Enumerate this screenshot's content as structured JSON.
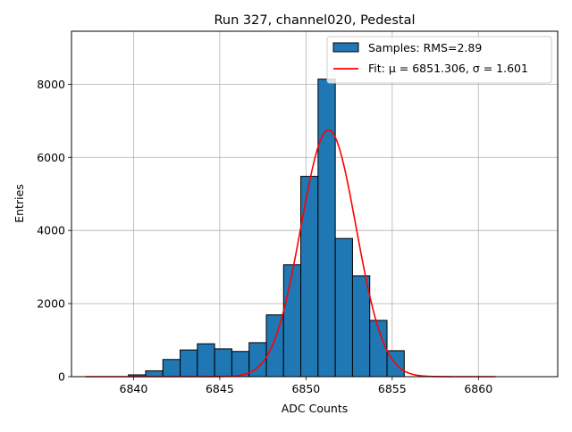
{
  "chart_data": {
    "type": "bar",
    "title": "Run 327, channel020, Pedestal",
    "xlabel": "ADC Counts",
    "ylabel": "Entries",
    "xlim": [
      6836.4,
      6864.6
    ],
    "ylim": [
      0,
      9450
    ],
    "xticks": [
      6840,
      6845,
      6850,
      6855,
      6860
    ],
    "yticks": [
      0,
      2000,
      4000,
      6000,
      8000
    ],
    "grid": true,
    "legend_position": "top-right",
    "bin_width": 1,
    "series": [
      {
        "name": "Samples: RMS=2.89",
        "kind": "histogram",
        "color": "#1f77b4",
        "edge_color": "#000000",
        "bin_left_edges": [
          6839.7,
          6840.7,
          6841.7,
          6842.7,
          6843.7,
          6844.7,
          6845.7,
          6846.7,
          6847.7,
          6848.7,
          6849.7,
          6850.7,
          6851.7,
          6852.7,
          6853.7,
          6854.7
        ],
        "values": [
          50,
          160,
          470,
          730,
          900,
          760,
          690,
          930,
          1690,
          3060,
          5480,
          8140,
          3780,
          2760,
          1540,
          710
        ]
      },
      {
        "name": "Fit: μ = 6851.306, σ = 1.601",
        "kind": "gaussian-fit",
        "color": "#ff0000",
        "mu": 6851.306,
        "sigma": 1.601,
        "amplitude": 6750,
        "x_range": [
          6837.2,
          6861.0
        ]
      }
    ]
  }
}
